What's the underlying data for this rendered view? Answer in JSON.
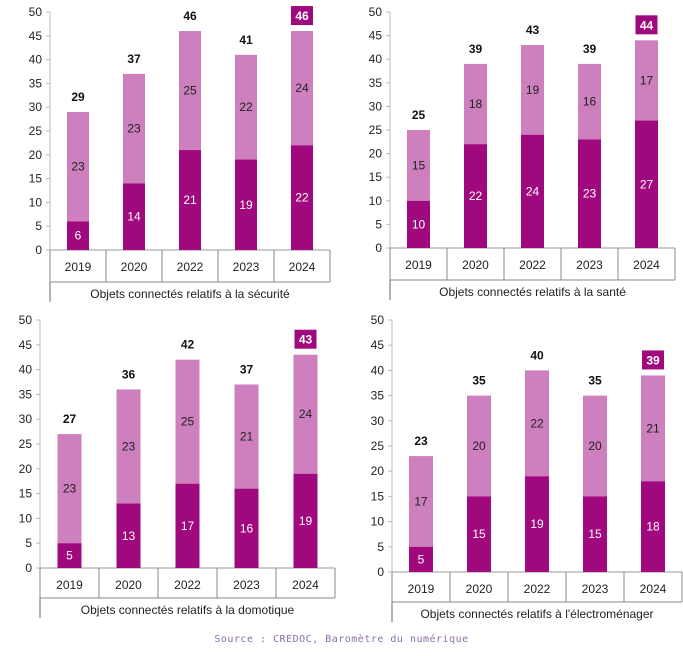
{
  "colors": {
    "dark": "#a0097d",
    "light": "#cd7fbe",
    "axis": "#555555",
    "text": "#222222"
  },
  "source": "Source : CREDOC, Baromètre du numérique",
  "chart_data": [
    {
      "type": "bar",
      "stacked": true,
      "title": "Objets connectés relatifs à la sécurité",
      "categories": [
        "2019",
        "2020",
        "2022",
        "2023",
        "2024"
      ],
      "series": [
        {
          "name": "dark",
          "values": [
            6,
            14,
            21,
            19,
            22
          ]
        },
        {
          "name": "light",
          "values": [
            23,
            23,
            25,
            22,
            24
          ]
        }
      ],
      "totals": [
        29,
        37,
        46,
        41,
        46
      ],
      "highlight_index": 4,
      "ylim": [
        0,
        50
      ],
      "yticks": [
        0,
        5,
        10,
        15,
        20,
        25,
        30,
        35,
        40,
        45,
        50
      ]
    },
    {
      "type": "bar",
      "stacked": true,
      "title": "Objets connectés relatifs à la santé",
      "categories": [
        "2019",
        "2020",
        "2022",
        "2023",
        "2024"
      ],
      "series": [
        {
          "name": "dark",
          "values": [
            10,
            22,
            24,
            23,
            27
          ]
        },
        {
          "name": "light",
          "values": [
            15,
            18,
            19,
            16,
            17
          ]
        }
      ],
      "totals": [
        25,
        39,
        43,
        39,
        44
      ],
      "highlight_index": 4,
      "ylim": [
        0,
        50
      ],
      "yticks": [
        0,
        5,
        10,
        15,
        20,
        25,
        30,
        35,
        40,
        45,
        50
      ]
    },
    {
      "type": "bar",
      "stacked": true,
      "title": "Objets connectés relatifs à la domotique",
      "categories": [
        "2019",
        "2020",
        "2022",
        "2023",
        "2024"
      ],
      "series": [
        {
          "name": "dark",
          "values": [
            5,
            13,
            17,
            16,
            19
          ]
        },
        {
          "name": "light",
          "values": [
            23,
            23,
            25,
            21,
            24
          ]
        }
      ],
      "totals": [
        27,
        36,
        42,
        37,
        43
      ],
      "highlight_index": 4,
      "ylim": [
        0,
        50
      ],
      "yticks": [
        0,
        5,
        10,
        15,
        20,
        25,
        30,
        35,
        40,
        45,
        50
      ]
    },
    {
      "type": "bar",
      "stacked": true,
      "title": "Objets connectés relatifs à l'électroménager",
      "categories": [
        "2019",
        "2020",
        "2022",
        "2023",
        "2024"
      ],
      "series": [
        {
          "name": "dark",
          "values": [
            5,
            15,
            19,
            15,
            18
          ]
        },
        {
          "name": "light",
          "values": [
            17,
            20,
            22,
            20,
            21
          ]
        }
      ],
      "totals": [
        23,
        35,
        40,
        35,
        39
      ],
      "highlight_index": 4,
      "ylim": [
        0,
        50
      ],
      "yticks": [
        0,
        5,
        10,
        15,
        20,
        25,
        30,
        35,
        40,
        45,
        50
      ]
    }
  ]
}
